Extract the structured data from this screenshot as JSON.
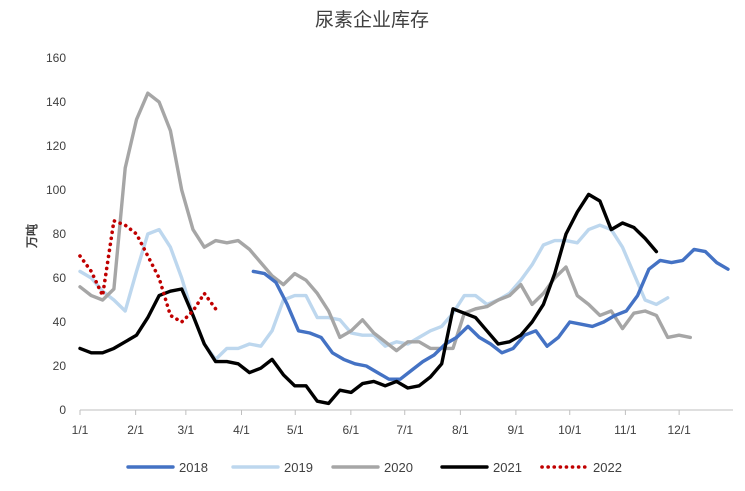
{
  "chart_data": {
    "type": "line",
    "title": "尿素企业库存",
    "ylabel": "万吨",
    "xlabel": "",
    "ylim": [
      0,
      160
    ],
    "yticks": [
      0,
      20,
      40,
      60,
      80,
      100,
      120,
      140,
      160
    ],
    "x_range_weeks": [
      0,
      52
    ],
    "x_ticks": [
      {
        "label": "1/1",
        "week": 0
      },
      {
        "label": "2/1",
        "week": 4.43
      },
      {
        "label": "3/1",
        "week": 8.43
      },
      {
        "label": "4/1",
        "week": 12.86
      },
      {
        "label": "5/1",
        "week": 17.14
      },
      {
        "label": "6/1",
        "week": 21.57
      },
      {
        "label": "7/1",
        "week": 25.86
      },
      {
        "label": "8/1",
        "week": 30.29
      },
      {
        "label": "9/1",
        "week": 34.71
      },
      {
        "label": "10/1",
        "week": 39.0
      },
      {
        "label": "11/1",
        "week": 43.43
      },
      {
        "label": "12/1",
        "week": 47.71
      }
    ],
    "grid": false,
    "legend_position": "bottom",
    "series": [
      {
        "name": "2018",
        "color": "#4472C4",
        "style": "solid",
        "values": [
          [
            13.8,
            63
          ],
          [
            14.7,
            62
          ],
          [
            15.6,
            58
          ],
          [
            16.5,
            48
          ],
          [
            17.4,
            36
          ],
          [
            18.3,
            35
          ],
          [
            19.2,
            33
          ],
          [
            20.1,
            26
          ],
          [
            21.0,
            23
          ],
          [
            21.9,
            21
          ],
          [
            22.8,
            20
          ],
          [
            23.7,
            17
          ],
          [
            24.6,
            14
          ],
          [
            25.5,
            14
          ],
          [
            26.4,
            18
          ],
          [
            27.3,
            22
          ],
          [
            28.2,
            25
          ],
          [
            29.1,
            30
          ],
          [
            30.0,
            33
          ],
          [
            30.9,
            38
          ],
          [
            31.8,
            33
          ],
          [
            32.7,
            30
          ],
          [
            33.6,
            26
          ],
          [
            34.5,
            28
          ],
          [
            35.4,
            34
          ],
          [
            36.3,
            36
          ],
          [
            37.2,
            29
          ],
          [
            38.1,
            33
          ],
          [
            39.0,
            40
          ],
          [
            39.9,
            39
          ],
          [
            40.8,
            38
          ],
          [
            41.7,
            40
          ],
          [
            42.6,
            43
          ],
          [
            43.5,
            45
          ],
          [
            44.4,
            52
          ],
          [
            45.3,
            64
          ],
          [
            46.2,
            68
          ],
          [
            47.1,
            67
          ],
          [
            48.0,
            68
          ],
          [
            48.9,
            73
          ],
          [
            49.8,
            72
          ],
          [
            50.7,
            67
          ],
          [
            51.6,
            64
          ]
        ]
      },
      {
        "name": "2019",
        "color": "#BDD7EE",
        "style": "solid",
        "values": [
          [
            0.0,
            63
          ],
          [
            0.9,
            60
          ],
          [
            1.8,
            54
          ],
          [
            2.7,
            50
          ],
          [
            3.6,
            45
          ],
          [
            4.5,
            63
          ],
          [
            5.4,
            80
          ],
          [
            6.3,
            82
          ],
          [
            7.2,
            74
          ],
          [
            8.1,
            60
          ],
          [
            9.0,
            43
          ],
          [
            9.9,
            30
          ],
          [
            10.8,
            23
          ],
          [
            11.7,
            28
          ],
          [
            12.6,
            28
          ],
          [
            13.5,
            30
          ],
          [
            14.4,
            29
          ],
          [
            15.3,
            36
          ],
          [
            16.2,
            50
          ],
          [
            17.1,
            52
          ],
          [
            18.0,
            52
          ],
          [
            18.9,
            42
          ],
          [
            19.8,
            42
          ],
          [
            20.7,
            41
          ],
          [
            21.6,
            35
          ],
          [
            22.5,
            34
          ],
          [
            23.4,
            34
          ],
          [
            24.3,
            29
          ],
          [
            25.2,
            31
          ],
          [
            26.1,
            30
          ],
          [
            27.0,
            33
          ],
          [
            27.9,
            36
          ],
          [
            28.8,
            38
          ],
          [
            29.7,
            44
          ],
          [
            30.6,
            52
          ],
          [
            31.5,
            52
          ],
          [
            32.4,
            48
          ],
          [
            33.3,
            50
          ],
          [
            34.2,
            53
          ],
          [
            35.1,
            59
          ],
          [
            36.0,
            66
          ],
          [
            36.9,
            75
          ],
          [
            37.8,
            77
          ],
          [
            38.7,
            77
          ],
          [
            39.6,
            76
          ],
          [
            40.5,
            82
          ],
          [
            41.4,
            84
          ],
          [
            42.3,
            82
          ],
          [
            43.2,
            74
          ],
          [
            44.1,
            62
          ],
          [
            45.0,
            50
          ],
          [
            45.9,
            48
          ],
          [
            46.8,
            51
          ]
        ]
      },
      {
        "name": "2020",
        "color": "#A6A6A6",
        "style": "solid",
        "values": [
          [
            0.0,
            56
          ],
          [
            0.9,
            52
          ],
          [
            1.8,
            50
          ],
          [
            2.7,
            55
          ],
          [
            3.6,
            110
          ],
          [
            4.5,
            132
          ],
          [
            5.4,
            144
          ],
          [
            6.3,
            140
          ],
          [
            7.2,
            127
          ],
          [
            8.1,
            100
          ],
          [
            9.0,
            82
          ],
          [
            9.9,
            74
          ],
          [
            10.8,
            77
          ],
          [
            11.7,
            76
          ],
          [
            12.6,
            77
          ],
          [
            13.5,
            73
          ],
          [
            14.4,
            67
          ],
          [
            15.3,
            61
          ],
          [
            16.2,
            57
          ],
          [
            17.1,
            62
          ],
          [
            18.0,
            59
          ],
          [
            18.9,
            53
          ],
          [
            19.8,
            45
          ],
          [
            20.7,
            33
          ],
          [
            21.6,
            36
          ],
          [
            22.5,
            41
          ],
          [
            23.4,
            35
          ],
          [
            24.3,
            31
          ],
          [
            25.2,
            27
          ],
          [
            26.1,
            31
          ],
          [
            27.0,
            31
          ],
          [
            27.9,
            28
          ],
          [
            28.8,
            28
          ],
          [
            29.7,
            28
          ],
          [
            30.6,
            44
          ],
          [
            31.5,
            46
          ],
          [
            32.4,
            47
          ],
          [
            33.3,
            50
          ],
          [
            34.2,
            52
          ],
          [
            35.1,
            57
          ],
          [
            36.0,
            48
          ],
          [
            36.9,
            53
          ],
          [
            37.8,
            60
          ],
          [
            38.7,
            65
          ],
          [
            39.6,
            52
          ],
          [
            40.5,
            48
          ],
          [
            41.4,
            43
          ],
          [
            42.3,
            45
          ],
          [
            43.2,
            37
          ],
          [
            44.1,
            44
          ],
          [
            45.0,
            45
          ],
          [
            45.9,
            43
          ],
          [
            46.8,
            33
          ],
          [
            47.7,
            34
          ],
          [
            48.6,
            33
          ]
        ]
      },
      {
        "name": "2021",
        "color": "#000000",
        "style": "solid",
        "values": [
          [
            0.0,
            28
          ],
          [
            0.9,
            26
          ],
          [
            1.8,
            26
          ],
          [
            2.7,
            28
          ],
          [
            3.6,
            31
          ],
          [
            4.5,
            34
          ],
          [
            5.4,
            42
          ],
          [
            6.3,
            52
          ],
          [
            7.2,
            54
          ],
          [
            8.1,
            55
          ],
          [
            9.0,
            43
          ],
          [
            9.9,
            30
          ],
          [
            10.8,
            22
          ],
          [
            11.7,
            22
          ],
          [
            12.6,
            21
          ],
          [
            13.5,
            17
          ],
          [
            14.4,
            19
          ],
          [
            15.3,
            23
          ],
          [
            16.2,
            16
          ],
          [
            17.1,
            11
          ],
          [
            18.0,
            11
          ],
          [
            18.9,
            4
          ],
          [
            19.8,
            3
          ],
          [
            20.7,
            9
          ],
          [
            21.6,
            8
          ],
          [
            22.5,
            12
          ],
          [
            23.4,
            13
          ],
          [
            24.3,
            11
          ],
          [
            25.2,
            13
          ],
          [
            26.1,
            10
          ],
          [
            27.0,
            11
          ],
          [
            27.9,
            15
          ],
          [
            28.8,
            21
          ],
          [
            29.7,
            46
          ],
          [
            30.6,
            44
          ],
          [
            31.5,
            42
          ],
          [
            32.4,
            36
          ],
          [
            33.3,
            30
          ],
          [
            34.2,
            31
          ],
          [
            35.1,
            34
          ],
          [
            36.0,
            40
          ],
          [
            36.9,
            48
          ],
          [
            37.8,
            62
          ],
          [
            38.7,
            80
          ],
          [
            39.6,
            90
          ],
          [
            40.5,
            98
          ],
          [
            41.4,
            95
          ],
          [
            42.3,
            82
          ],
          [
            43.2,
            85
          ],
          [
            44.1,
            83
          ],
          [
            45.0,
            78
          ],
          [
            45.9,
            72
          ]
        ]
      },
      {
        "name": "2022",
        "color": "#C00000",
        "style": "dotted",
        "values": [
          [
            0.0,
            70
          ],
          [
            0.9,
            63
          ],
          [
            1.8,
            52
          ],
          [
            2.7,
            86
          ],
          [
            3.6,
            84
          ],
          [
            4.5,
            80
          ],
          [
            5.4,
            70
          ],
          [
            6.3,
            60
          ],
          [
            7.2,
            43
          ],
          [
            8.1,
            40
          ],
          [
            9.0,
            45
          ],
          [
            9.9,
            53
          ],
          [
            10.8,
            46
          ]
        ]
      }
    ]
  }
}
